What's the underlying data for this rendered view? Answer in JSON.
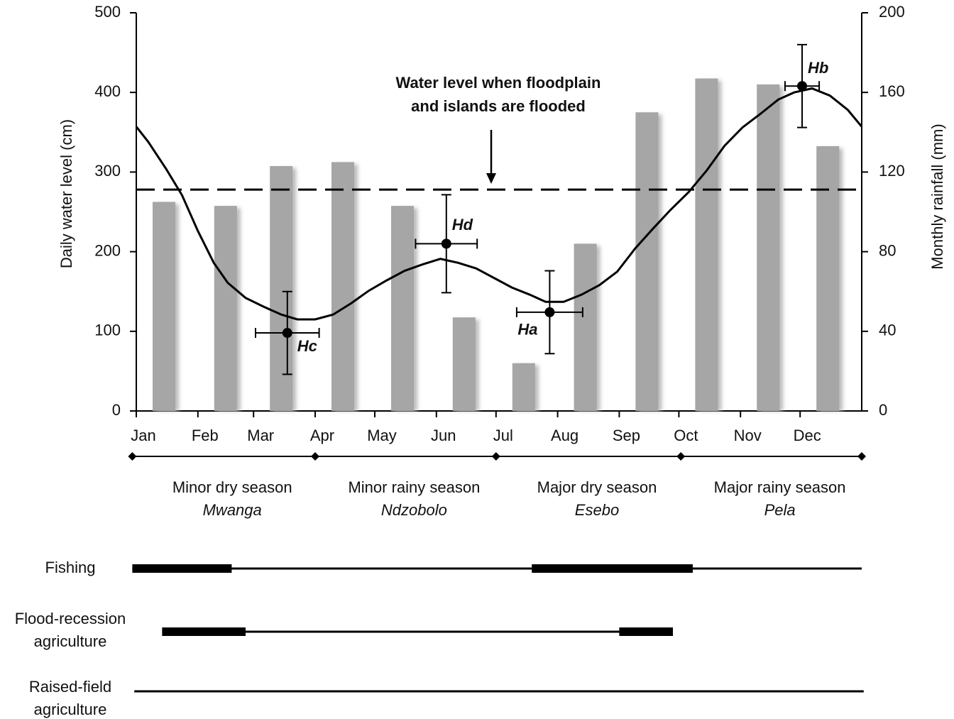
{
  "chart_data": {
    "type": "combo",
    "xlim": [
      0,
      365
    ],
    "xticks": [
      {
        "value": 0,
        "label": "Jan"
      },
      {
        "value": 31,
        "label": "Feb"
      },
      {
        "value": 59,
        "label": "Mar"
      },
      {
        "value": 90,
        "label": "Apr"
      },
      {
        "value": 120,
        "label": "May"
      },
      {
        "value": 151,
        "label": "Jun"
      },
      {
        "value": 181,
        "label": "Jul"
      },
      {
        "value": 212,
        "label": "Aug"
      },
      {
        "value": 243,
        "label": "Sep"
      },
      {
        "value": 273,
        "label": "Oct"
      },
      {
        "value": 304,
        "label": "Nov"
      },
      {
        "value": 334,
        "label": "Dec"
      }
    ],
    "ylim": [
      0,
      500
    ],
    "yticks": [
      0,
      100,
      200,
      300,
      400,
      500
    ],
    "y2lim": [
      0,
      200
    ],
    "y2ticks": [
      0,
      40,
      80,
      120,
      160,
      200
    ],
    "ylabel": "Daily water level (cm)",
    "y2label": "Monthly rainfall (mm)",
    "series": [
      {
        "type": "bar",
        "axis": "y2",
        "color": "#a6a6a6",
        "values": [
          105,
          103,
          123,
          125,
          103,
          47,
          24,
          84,
          150,
          167,
          164,
          133
        ]
      },
      {
        "type": "line",
        "color": "#000000",
        "x": [
          0,
          6,
          15,
          23,
          31,
          39,
          46,
          55,
          64,
          73,
          81,
          90,
          99,
          108,
          117,
          126,
          135,
          144,
          153,
          162,
          171,
          180,
          189,
          198,
          206,
          215,
          224,
          233,
          242,
          251,
          260,
          269,
          278,
          287,
          296,
          305,
          314,
          323,
          331,
          340,
          349,
          358,
          365
        ],
        "values": [
          357,
          338,
          304,
          271,
          226,
          186,
          161,
          142,
          131,
          121,
          115,
          115,
          121,
          135,
          151,
          164,
          176,
          184,
          191,
          186,
          179,
          167,
          155,
          146,
          137,
          137,
          146,
          158,
          175,
          204,
          229,
          253,
          275,
          302,
          333,
          356,
          373,
          391,
          400,
          405,
          396,
          378,
          357
        ]
      }
    ],
    "points": [
      {
        "label": "Hc",
        "x": 76,
        "y": 98,
        "xerr": 16,
        "yerr": 52
      },
      {
        "label": "Hd",
        "x": 156,
        "y": 210,
        "xerr": 15.5,
        "yerr": 61.5
      },
      {
        "label": "Ha",
        "x": 208,
        "y": 124,
        "xerr": 16.6,
        "yerr": 52
      },
      {
        "label": "Hb",
        "x": 335,
        "y": 408,
        "xerr": 8.6,
        "yerr": 52
      }
    ],
    "threshold": {
      "value": 278,
      "label": [
        "Water level when floodplain",
        "and islands are flooded"
      ]
    }
  },
  "seasons": [
    {
      "name": "Minor dry season",
      "local": "Mwanga",
      "start": -2,
      "end": 90
    },
    {
      "name": "Minor rainy season",
      "local": "Ndzobolo",
      "start": 90,
      "end": 181
    },
    {
      "name": "Major dry season",
      "local": "Esebo",
      "start": 181,
      "end": 274
    },
    {
      "name": "Major rainy season",
      "local": "Pela",
      "start": 274,
      "end": 365
    }
  ],
  "activities": [
    {
      "label": [
        "Fishing"
      ],
      "span": [
        -2,
        365
      ],
      "intensive": [
        [
          -2,
          48
        ],
        [
          199,
          280
        ]
      ]
    },
    {
      "label": [
        "Flood-recession",
        "agriculture"
      ],
      "span": [
        13,
        243
      ],
      "intensive": [
        [
          13,
          55
        ],
        [
          243,
          270
        ]
      ]
    },
    {
      "label": [
        "Raised-field",
        "agriculture"
      ],
      "span": [
        -1,
        366
      ],
      "intensive": []
    }
  ]
}
